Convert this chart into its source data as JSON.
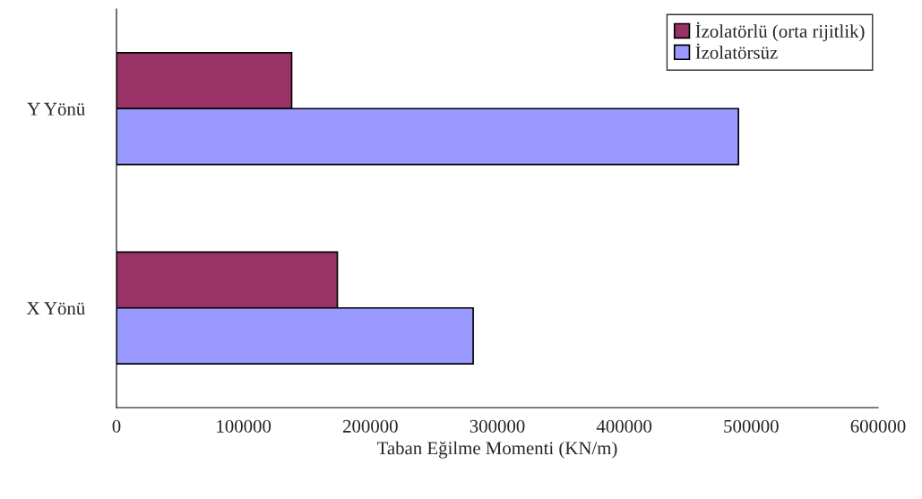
{
  "chart_data": {
    "type": "bar",
    "orientation": "horizontal",
    "xlabel": "Taban Eğilme Momenti (KN/m)",
    "categories": [
      "Y Yönü",
      "X Yönü"
    ],
    "series": [
      {
        "name": "İzolatörlü (orta rijitlik)",
        "color": "#993366",
        "values": [
          138000,
          174000
        ]
      },
      {
        "name": "İzolatörsüz",
        "color": "#9999ff",
        "values": [
          490000,
          281000
        ]
      }
    ],
    "xlim": [
      0,
      600000
    ],
    "xticks": [
      0,
      100000,
      200000,
      300000,
      400000,
      500000,
      600000
    ],
    "grid": false,
    "legend": "top right"
  }
}
